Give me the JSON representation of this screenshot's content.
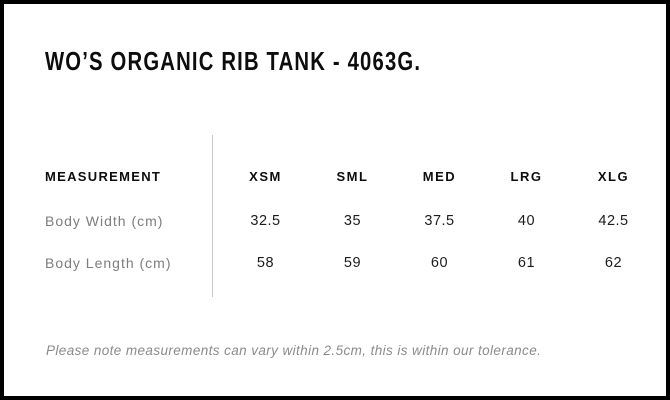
{
  "page": {
    "title": "WO’S ORGANIC RIB TANK - 4063G."
  },
  "size_chart": {
    "columns": [
      "MEASUREMENT",
      "XSM",
      "SML",
      "MED",
      "LRG",
      "XLG"
    ],
    "rows": [
      {
        "label": "Body Width (cm)",
        "values": [
          "32.5",
          "35",
          "37.5",
          "40",
          "42.5"
        ]
      },
      {
        "label": "Body Length (cm)",
        "values": [
          "58",
          "59",
          "60",
          "61",
          "62"
        ]
      }
    ]
  },
  "footer": {
    "note": "Please note measurements can vary within 2.5cm, this is within our tolerance."
  },
  "colors": {
    "border": "#000000",
    "title_text": "#0d0d0d",
    "header_text": "#0d0d0d",
    "label_text": "#7d7d7d",
    "value_text": "#1c1c1c",
    "note_text": "#8b8b8b",
    "divider": "#c7c7c7",
    "background": "#ffffff"
  }
}
